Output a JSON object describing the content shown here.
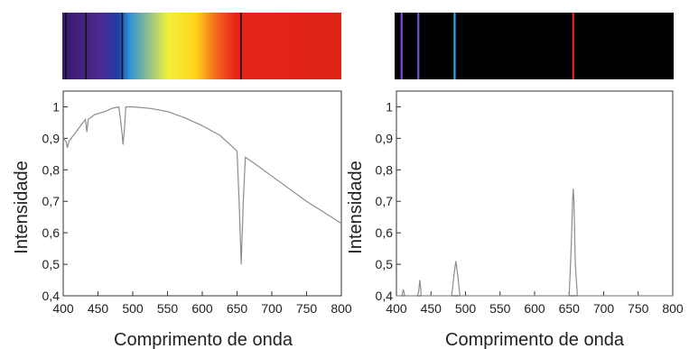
{
  "chart_data": [
    {
      "type": "line",
      "title": "",
      "xlabel": "Comprimento de onda",
      "ylabel": "Intensidade",
      "xlim": [
        400,
        800
      ],
      "ylim": [
        0.4,
        1.05
      ],
      "xticks": [
        "400",
        "450",
        "500",
        "550",
        "600",
        "650",
        "700",
        "750",
        "800"
      ],
      "yticks": [
        "0,4",
        "0,5",
        "0,6",
        "0,7",
        "0,8",
        "0,9",
        "1"
      ],
      "grid": false,
      "legend": "none",
      "line_color": "#8c8c8c",
      "spectrum_bar": "continuous with dark absorption lines",
      "absorption_lines_nm": [
        405,
        434,
        486,
        656
      ],
      "x": [
        400,
        404,
        406,
        408,
        415,
        425,
        432,
        434,
        436,
        445,
        460,
        470,
        480,
        484,
        486,
        488,
        490,
        500,
        525,
        550,
        575,
        600,
        625,
        650,
        653,
        656,
        659,
        662,
        675,
        700,
        725,
        750,
        775,
        800
      ],
      "y": [
        0.9,
        0.89,
        0.87,
        0.89,
        0.91,
        0.94,
        0.96,
        0.92,
        0.96,
        0.975,
        0.985,
        0.995,
        1.0,
        0.93,
        0.88,
        0.93,
        1.0,
        1.0,
        0.995,
        0.985,
        0.965,
        0.94,
        0.91,
        0.86,
        0.7,
        0.5,
        0.7,
        0.84,
        0.82,
        0.78,
        0.74,
        0.7,
        0.665,
        0.63
      ]
    },
    {
      "type": "line",
      "title": "",
      "xlabel": "Comprimento de onda",
      "ylabel": "Intensidade",
      "xlim": [
        400,
        800
      ],
      "ylim": [
        0.4,
        1.05
      ],
      "xticks": [
        "400",
        "450",
        "500",
        "550",
        "600",
        "650",
        "700",
        "750",
        "800"
      ],
      "yticks": [
        "0,4",
        "0,5",
        "0,6",
        "0,7",
        "0,8",
        "0,9",
        "1"
      ],
      "grid": false,
      "legend": "none",
      "line_color": "#8c8c8c",
      "spectrum_bar": "black with bright emission lines",
      "emission_lines_nm": [
        410,
        434,
        486,
        656
      ],
      "x": [
        400,
        408,
        410,
        412,
        430,
        432,
        434,
        436,
        480,
        483,
        486,
        489,
        492,
        650,
        653,
        655,
        656,
        657,
        659,
        662,
        800
      ],
      "y": [
        0.4,
        0.4,
        0.42,
        0.4,
        0.4,
        0.41,
        0.45,
        0.4,
        0.4,
        0.46,
        0.51,
        0.46,
        0.4,
        0.4,
        0.55,
        0.7,
        0.74,
        0.7,
        0.5,
        0.4,
        0.4
      ]
    }
  ],
  "colors": {
    "line": "#8c8c8c",
    "axis": "#333333",
    "dark_background": "#000000",
    "continuum_stops": [
      "#3a1a6e",
      "#4b2a8f",
      "#1f3ea8",
      "#2f8fd8",
      "#f2f03a",
      "#ffd21a",
      "#f36a1c",
      "#e62518",
      "#dd2216"
    ],
    "line_colors": {
      "410": "#7a4fd0",
      "434": "#6a57c8",
      "486": "#3aa4e8",
      "656": "#e0261a"
    }
  }
}
